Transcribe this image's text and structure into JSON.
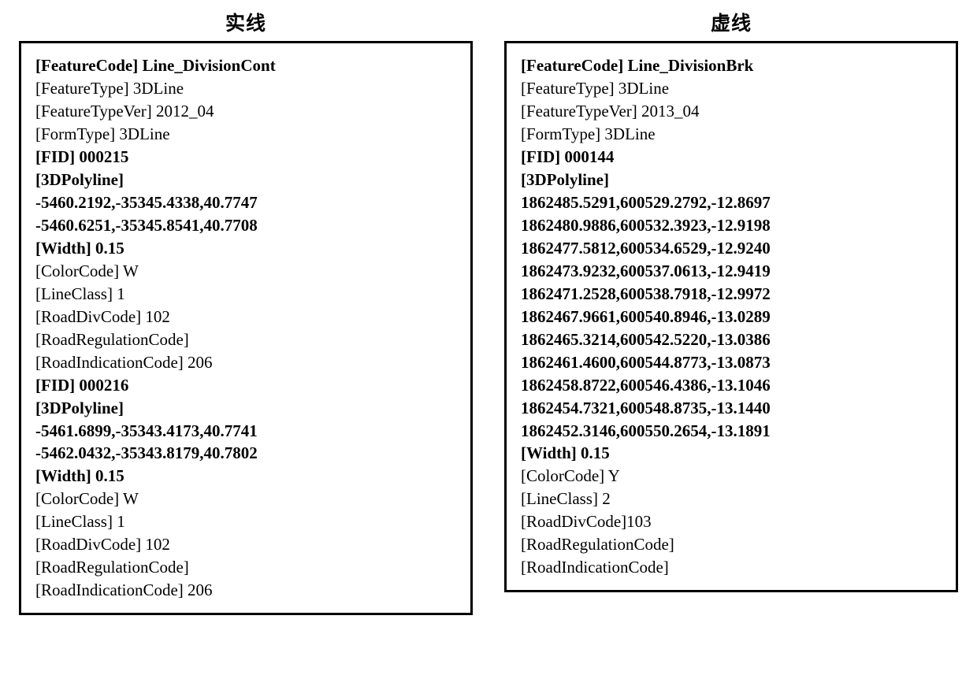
{
  "left": {
    "title": "实线",
    "lines": [
      {
        "t": "[FeatureCode] Line_DivisionCont",
        "b": true
      },
      {
        "t": "[FeatureType] 3DLine",
        "b": false
      },
      {
        "t": "[FeatureTypeVer] 2012_04",
        "b": false
      },
      {
        "t": "[FormType] 3DLine",
        "b": false
      },
      {
        "t": "[FID] 000215",
        "b": true
      },
      {
        "t": "[3DPolyline]",
        "b": true
      },
      {
        "t": "-5460.2192,-35345.4338,40.7747",
        "b": true
      },
      {
        "t": "-5460.6251,-35345.8541,40.7708",
        "b": true
      },
      {
        "t": "[Width] 0.15",
        "b": true
      },
      {
        "t": "[ColorCode] W",
        "b": false
      },
      {
        "t": "[LineClass] 1",
        "b": false
      },
      {
        "t": "[RoadDivCode] 102",
        "b": false
      },
      {
        "t": "[RoadRegulationCode]",
        "b": false
      },
      {
        "t": "[RoadIndicationCode] 206",
        "b": false
      },
      {
        "t": "[FID] 000216",
        "b": true
      },
      {
        "t": "[3DPolyline]",
        "b": true
      },
      {
        "t": "-5461.6899,-35343.4173,40.7741",
        "b": true
      },
      {
        "t": "-5462.0432,-35343.8179,40.7802",
        "b": true
      },
      {
        "t": "[Width] 0.15",
        "b": true
      },
      {
        "t": "[ColorCode] W",
        "b": false
      },
      {
        "t": "[LineClass] 1",
        "b": false
      },
      {
        "t": "[RoadDivCode] 102",
        "b": false
      },
      {
        "t": "[RoadRegulationCode]",
        "b": false
      },
      {
        "t": "[RoadIndicationCode] 206",
        "b": false
      }
    ]
  },
  "right": {
    "title": "虚线",
    "lines": [
      {
        "t": "[FeatureCode] Line_DivisionBrk",
        "b": true
      },
      {
        "t": "[FeatureType] 3DLine",
        "b": false
      },
      {
        "t": "[FeatureTypeVer] 2013_04",
        "b": false
      },
      {
        "t": "[FormType] 3DLine",
        "b": false
      },
      {
        "t": "[FID] 000144",
        "b": true
      },
      {
        "t": "[3DPolyline]",
        "b": true
      },
      {
        "t": "1862485.5291,600529.2792,-12.8697",
        "b": true
      },
      {
        "t": "1862480.9886,600532.3923,-12.9198",
        "b": true
      },
      {
        "t": "1862477.5812,600534.6529,-12.9240",
        "b": true
      },
      {
        "t": "1862473.9232,600537.0613,-12.9419",
        "b": true
      },
      {
        "t": "1862471.2528,600538.7918,-12.9972",
        "b": true
      },
      {
        "t": "1862467.9661,600540.8946,-13.0289",
        "b": true
      },
      {
        "t": "1862465.3214,600542.5220,-13.0386",
        "b": true
      },
      {
        "t": "1862461.4600,600544.8773,-13.0873",
        "b": true
      },
      {
        "t": "1862458.8722,600546.4386,-13.1046",
        "b": true
      },
      {
        "t": "1862454.7321,600548.8735,-13.1440",
        "b": true
      },
      {
        "t": "1862452.3146,600550.2654,-13.1891",
        "b": true
      },
      {
        "t": "[Width] 0.15",
        "b": true
      },
      {
        "t": "[ColorCode] Y",
        "b": false
      },
      {
        "t": "[LineClass] 2",
        "b": false
      },
      {
        "t": "[RoadDivCode]103",
        "b": false
      },
      {
        "t": "[RoadRegulationCode]",
        "b": false
      },
      {
        "t": "[RoadIndicationCode]",
        "b": false
      }
    ]
  }
}
